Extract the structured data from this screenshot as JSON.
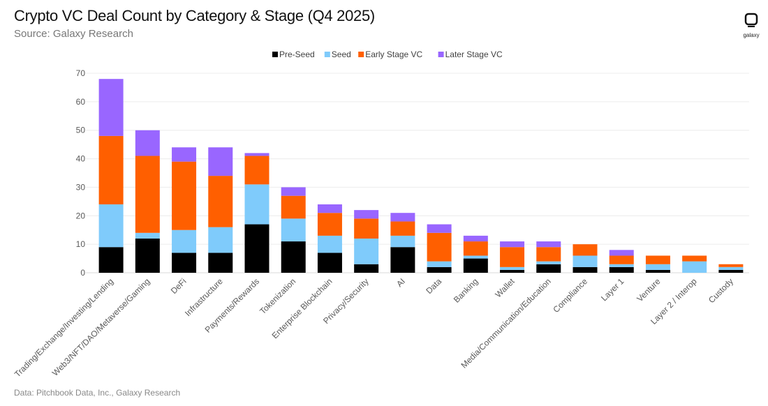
{
  "chart_data": {
    "type": "bar",
    "stacked": true,
    "title": "Crypto VC Deal Count by Category & Stage (Q4 2025)",
    "subtitle": "Source: Galaxy Research",
    "footer": "Data: Pitchbook Data, Inc., Galaxy Research",
    "logo_text": "galaxy",
    "xlabel": "",
    "ylabel": "",
    "ylim": [
      0,
      70
    ],
    "yticks": [
      0,
      10,
      20,
      30,
      40,
      50,
      60,
      70
    ],
    "grid": true,
    "legend_position": "top",
    "categories": [
      "Trading/Exchange/Investing/Lending",
      "Web3/NFT/DAO/Metaverse/Gaming",
      "DeFi",
      "Infrastructure",
      "Payments/Rewards",
      "Tokenization",
      "Enterprise Blockchain",
      "Privacy/Security",
      "AI",
      "Data",
      "Banking",
      "Wallet",
      "Media/Communication/Education",
      "Compliance",
      "Layer 1",
      "Venture",
      "Layer 2 / Interop",
      "Custody"
    ],
    "series": [
      {
        "name": "Pre-Seed",
        "color": "#000000",
        "values": [
          9,
          12,
          7,
          7,
          17,
          11,
          7,
          3,
          9,
          2,
          5,
          1,
          3,
          2,
          2,
          1,
          0,
          1
        ]
      },
      {
        "name": "Seed",
        "color": "#7FCBFB",
        "values": [
          15,
          2,
          8,
          9,
          14,
          8,
          6,
          9,
          4,
          2,
          1,
          1,
          1,
          4,
          1,
          2,
          4,
          1
        ]
      },
      {
        "name": "Early Stage VC",
        "color": "#FF5F00",
        "values": [
          24,
          27,
          24,
          18,
          10,
          8,
          8,
          7,
          5,
          10,
          5,
          7,
          5,
          4,
          3,
          3,
          2,
          1
        ]
      },
      {
        "name": "Later Stage VC",
        "color": "#9966FF",
        "values": [
          20,
          9,
          5,
          10,
          1,
          3,
          3,
          3,
          3,
          3,
          2,
          2,
          2,
          0,
          2,
          0,
          0,
          0
        ]
      }
    ]
  }
}
